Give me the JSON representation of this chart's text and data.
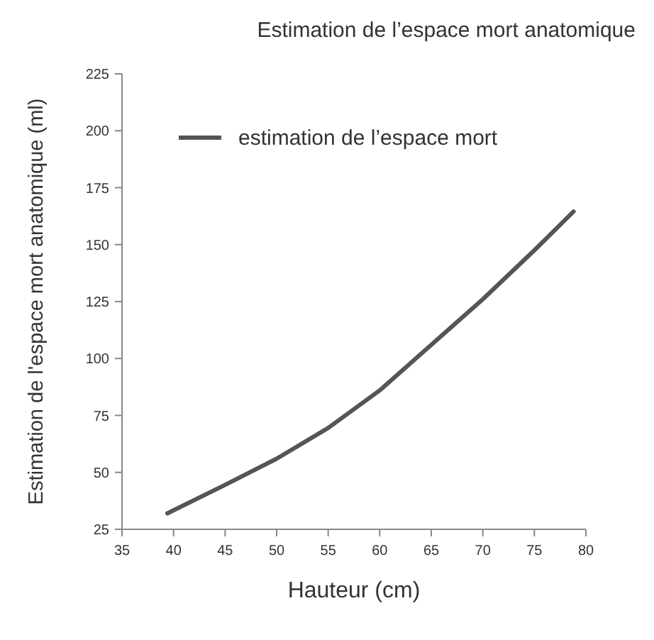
{
  "chart_data": {
    "type": "line",
    "title": "Estimation de l’espace mort anatomique",
    "xlabel": "Hauteur (cm)",
    "ylabel": "Estimation de l'espace mort anatomique (ml)",
    "x": [
      39.4,
      45,
      50,
      55,
      60,
      65,
      70,
      75,
      78.8
    ],
    "series": [
      {
        "name": "estimation de l’espace mort",
        "color": "#555555",
        "values": [
          32,
          44.5,
          56,
          69.5,
          86,
          106,
          126,
          147.5,
          164.5
        ]
      }
    ],
    "xlim": [
      35,
      80
    ],
    "xticks": [
      35,
      40,
      45,
      50,
      55,
      60,
      65,
      70,
      75,
      80
    ],
    "ylim": [
      25,
      225
    ],
    "yticks": [
      25,
      50,
      75,
      100,
      125,
      150,
      175,
      200,
      225
    ],
    "grid": false,
    "legend": "top left",
    "marker": "none",
    "line_style": "solid"
  }
}
